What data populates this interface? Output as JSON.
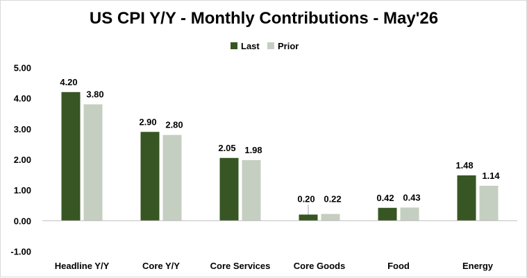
{
  "chart_data": {
    "type": "bar",
    "title": "US CPI Y/Y - Monthly Contributions - May'26",
    "categories": [
      "Headline Y/Y",
      "Core Y/Y",
      "Core Services",
      "Core Goods",
      "Food",
      "Energy"
    ],
    "series": [
      {
        "name": "Last",
        "color": "#375623",
        "values": [
          4.2,
          2.9,
          2.05,
          0.2,
          0.42,
          1.48
        ],
        "labels": [
          "4.20",
          "2.90",
          "2.05",
          "0.20",
          "0.42",
          "1.48"
        ]
      },
      {
        "name": "Prior",
        "color": "#c5cfc1",
        "values": [
          3.8,
          2.8,
          1.98,
          0.22,
          0.43,
          1.14
        ],
        "labels": [
          "3.80",
          "2.80",
          "1.98",
          "0.22",
          "0.43",
          "1.14"
        ]
      }
    ],
    "yticks": [
      "5.00",
      "4.00",
      "3.00",
      "2.00",
      "1.00",
      "0.00",
      "-1.00"
    ],
    "ylim": [
      -1,
      5
    ],
    "legend_position": "top",
    "grid": false,
    "xlabel": "",
    "ylabel": ""
  }
}
